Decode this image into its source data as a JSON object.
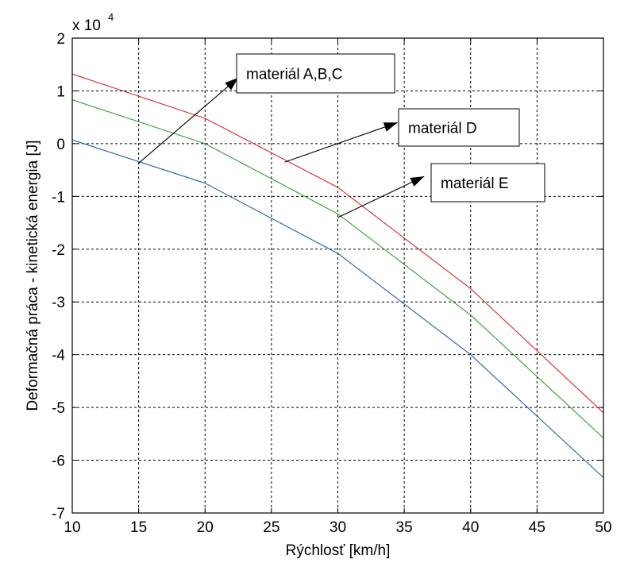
{
  "chart_data": {
    "type": "line",
    "xlabel": "Rýchlosť [km/h]",
    "ylabel": "Deformačná práca - kinetická energia [J]",
    "exponent_label": {
      "base": "x 10",
      "power": "4"
    },
    "xlim": [
      10,
      50
    ],
    "ylim": [
      -7,
      2
    ],
    "xticks": [
      10,
      15,
      20,
      25,
      30,
      35,
      40,
      45,
      50
    ],
    "yticks": [
      -7,
      -6,
      -5,
      -4,
      -3,
      -2,
      -1,
      0,
      1,
      2
    ],
    "grid": true,
    "x": [
      10,
      20,
      30,
      40,
      50
    ],
    "series": [
      {
        "color": "#d62728",
        "values": [
          1.32,
          0.48,
          -0.83,
          -2.75,
          -5.1
        ]
      },
      {
        "color": "#2ca02c",
        "values": [
          0.83,
          0.0,
          -1.33,
          -3.25,
          -5.58
        ]
      },
      {
        "color": "#1f5fae",
        "values": [
          0.07,
          -0.75,
          -2.08,
          -4.0,
          -6.33
        ]
      }
    ],
    "annotations": [
      {
        "text": "materiál A,B,C",
        "from": [
          15,
          -0.37
        ],
        "to": [
          22.5,
          1.25
        ]
      },
      {
        "text": "materiál D",
        "from": [
          26,
          -0.35
        ],
        "to": [
          34.5,
          0.4
        ]
      },
      {
        "text": "materiál E",
        "from": [
          30,
          -1.4
        ],
        "to": [
          36.5,
          -0.62
        ]
      }
    ]
  }
}
